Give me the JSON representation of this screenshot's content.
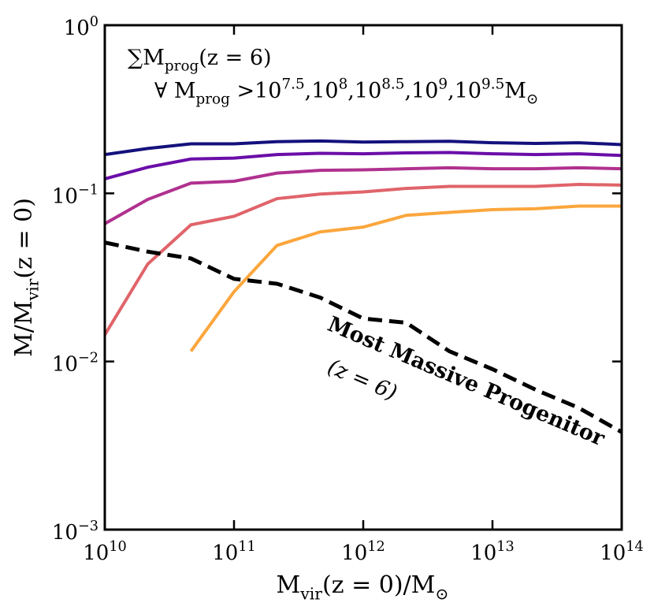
{
  "chart_data": {
    "type": "line",
    "xlabel": "M_{vir}(z = 0)/M_{⊙}",
    "ylabel": "M/M_{vir}(z = 0)",
    "annotations": [
      "∑M_{prog}(z = 6)",
      "∀ M_{prog} > ",
      " M_{⊙}",
      "(z = 6)"
    ],
    "legend_separator": ", ",
    "xscale": "log",
    "yscale": "log",
    "xlim": [
      10000000000.0,
      100000000000000.0
    ],
    "ylim": [
      0.001,
      1
    ],
    "xticks": [
      {
        "value": 10000000000.0,
        "label": "10^{10}"
      },
      {
        "value": 100000000000.0,
        "label": "10^{11}"
      },
      {
        "value": 1000000000000.0,
        "label": "10^{12}"
      },
      {
        "value": 10000000000000.0,
        "label": "10^{13}"
      },
      {
        "value": 100000000000000.0,
        "label": "10^{14}"
      }
    ],
    "yticks": [
      {
        "value": 0.001,
        "label": "10^{−3}"
      },
      {
        "value": 0.01,
        "label": "10^{−2}"
      },
      {
        "value": 0.1,
        "label": "10^{−1}"
      },
      {
        "value": 1,
        "label": "10^{0}"
      }
    ],
    "x": [
      10000000000.0,
      21500000000.0,
      46400000000.0,
      100000000000.0,
      215000000000.0,
      464000000000.0,
      1000000000000.0,
      2150000000000.0,
      4640000000000.0,
      10000000000000.0,
      21500000000000.0,
      46400000000000.0,
      100000000000000.0
    ],
    "series": [
      {
        "name": "10^{7.5}",
        "color": "#14117d",
        "values": [
          0.17,
          0.185,
          0.197,
          0.197,
          0.203,
          0.205,
          0.202,
          0.203,
          0.204,
          0.2,
          0.198,
          0.2,
          0.195
        ]
      },
      {
        "name": "10^{8}",
        "color": "#6a0ea8",
        "values": [
          0.122,
          0.143,
          0.16,
          0.162,
          0.17,
          0.173,
          0.172,
          0.174,
          0.175,
          0.172,
          0.17,
          0.172,
          0.168
        ]
      },
      {
        "name": "10^{8.5}",
        "color": "#b0318f",
        "values": [
          0.066,
          0.092,
          0.115,
          0.118,
          0.132,
          0.137,
          0.138,
          0.14,
          0.142,
          0.14,
          0.14,
          0.142,
          0.14
        ]
      },
      {
        "name": "10^{9}",
        "color": "#e0646a",
        "values": [
          0.0144,
          0.038,
          0.065,
          0.073,
          0.093,
          0.099,
          0.102,
          0.107,
          0.11,
          0.11,
          0.11,
          0.113,
          0.112
        ]
      },
      {
        "name": "10^{9.5}",
        "color": "#fba63c",
        "values": [
          null,
          null,
          0.0115,
          0.026,
          0.049,
          0.059,
          0.063,
          0.074,
          0.077,
          0.08,
          0.081,
          0.084,
          0.084
        ]
      },
      {
        "name": "Most Massive Progenitor",
        "color": "#000000",
        "dashed": true,
        "values": [
          0.051,
          0.045,
          0.041,
          0.031,
          0.029,
          0.024,
          0.018,
          0.017,
          0.0115,
          0.009,
          0.0068,
          0.0053,
          0.0038
        ]
      }
    ]
  }
}
